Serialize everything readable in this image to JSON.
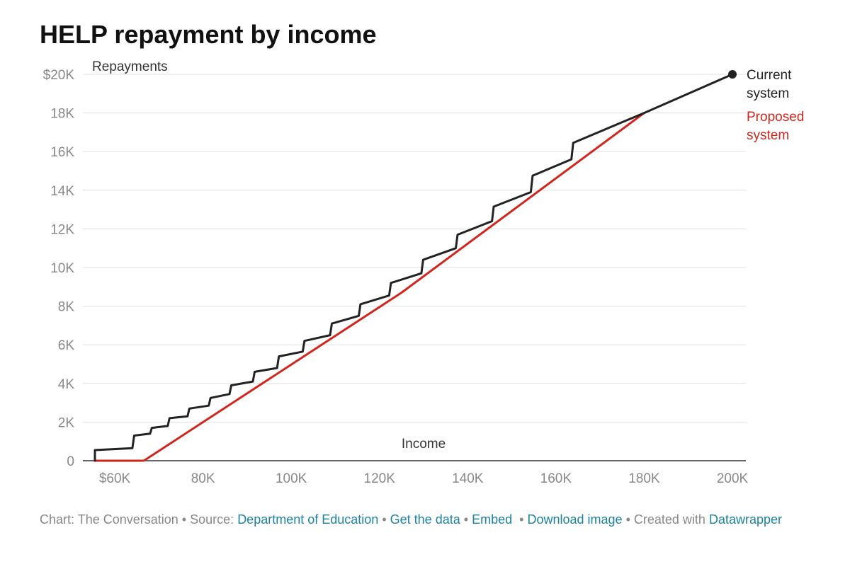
{
  "title": "HELP repayment by income",
  "footer": {
    "chart_credit": "Chart: The Conversation",
    "source_prefix": "Source:",
    "source_link": "Department of Education",
    "get_data": "Get the data",
    "embed": "Embed",
    "download": "Download image",
    "created_with": "Created with",
    "datawrapper": "Datawrapper",
    "separator": "•",
    "link_color": "#1d81a2",
    "text_color": "#888888"
  },
  "chart_data": {
    "type": "line",
    "title": "HELP repayment by income",
    "xlabel": "Income",
    "ylabel": "Repayments",
    "xlim": [
      55000,
      200000
    ],
    "ylim": [
      0,
      20000
    ],
    "grid": true,
    "x_ticks": [
      {
        "value": 60000,
        "label": "$60K"
      },
      {
        "value": 80000,
        "label": "80K"
      },
      {
        "value": 100000,
        "label": "100K"
      },
      {
        "value": 120000,
        "label": "120K"
      },
      {
        "value": 140000,
        "label": "140K"
      },
      {
        "value": 160000,
        "label": "160K"
      },
      {
        "value": 180000,
        "label": "180K"
      },
      {
        "value": 200000,
        "label": "200K"
      }
    ],
    "y_ticks": [
      {
        "value": 0,
        "label": "0"
      },
      {
        "value": 2000,
        "label": "2K"
      },
      {
        "value": 4000,
        "label": "4K"
      },
      {
        "value": 6000,
        "label": "6K"
      },
      {
        "value": 8000,
        "label": "8K"
      },
      {
        "value": 10000,
        "label": "10K"
      },
      {
        "value": 12000,
        "label": "12K"
      },
      {
        "value": 14000,
        "label": "14K"
      },
      {
        "value": 16000,
        "label": "16K"
      },
      {
        "value": 18000,
        "label": "18K"
      },
      {
        "value": 20000,
        "label": "$20K"
      }
    ],
    "series": [
      {
        "name": "Current system",
        "label_lines": [
          "Current",
          "system"
        ],
        "color": "#222222",
        "end_marker": true,
        "x": [
          55500,
          55500,
          64000,
          64400,
          68000,
          68400,
          72000,
          72400,
          76500,
          76900,
          81300,
          81700,
          86000,
          86400,
          91300,
          91700,
          96800,
          97200,
          102600,
          103000,
          108800,
          109200,
          115300,
          115700,
          122200,
          122600,
          129500,
          129900,
          137300,
          137700,
          145500,
          145900,
          154300,
          154700,
          163500,
          163900,
          180000,
          200000
        ],
        "y": [
          0,
          550,
          650,
          1300,
          1400,
          1700,
          1800,
          2200,
          2300,
          2700,
          2850,
          3250,
          3450,
          3900,
          4100,
          4600,
          4800,
          5400,
          5650,
          6200,
          6500,
          7100,
          7500,
          8100,
          8550,
          9200,
          9700,
          10400,
          11000,
          11700,
          12400,
          13150,
          13900,
          14750,
          15600,
          16450,
          18000,
          20000
        ]
      },
      {
        "name": "Proposed system",
        "label_lines": [
          "Proposed",
          "system"
        ],
        "color": "#d0261d",
        "end_marker": false,
        "x": [
          55500,
          66600,
          125000,
          180000
        ],
        "y": [
          0,
          0,
          8700,
          18000
        ]
      }
    ]
  }
}
